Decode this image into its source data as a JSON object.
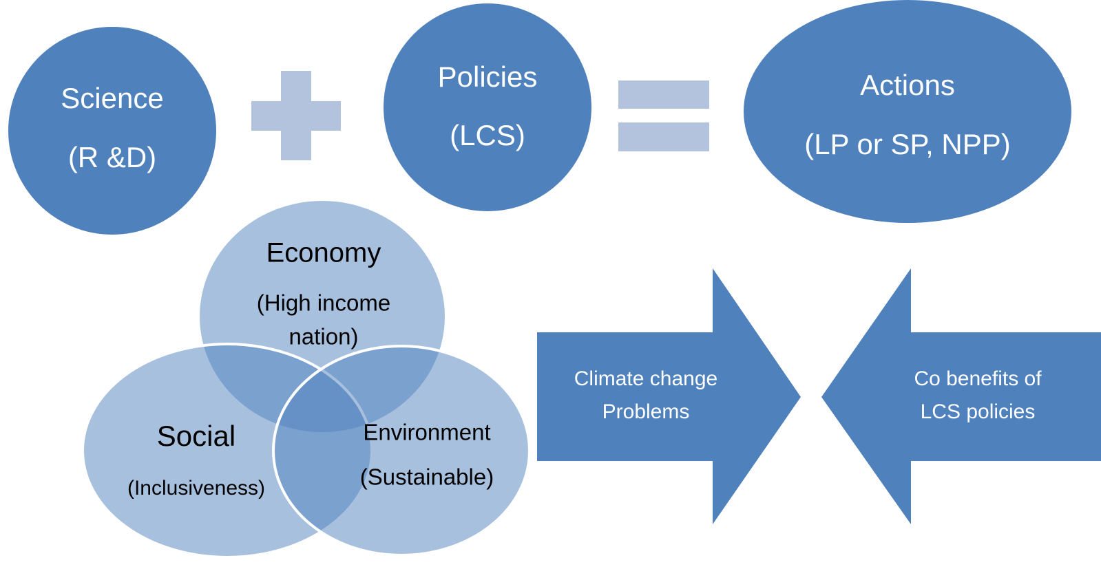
{
  "nodes": [
    {
      "lines": [
        "Science",
        "(R &D)"
      ]
    },
    {
      "lines": [
        "Policies",
        "(LCS)"
      ]
    },
    {
      "lines": [
        "Actions",
        "(LP or SP, NPP)"
      ]
    }
  ],
  "venn": [
    {
      "lines": [
        "Economy",
        "(High income",
        "nation)"
      ]
    },
    {
      "lines": [
        "Social",
        "(Inclusiveness)"
      ]
    },
    {
      "lines": [
        "Environment",
        "(Sustainable)"
      ]
    }
  ],
  "arrows": [
    {
      "lines": [
        "Climate change",
        "Problems"
      ]
    },
    {
      "lines": [
        "Co benefits of",
        "LCS policies"
      ]
    }
  ]
}
